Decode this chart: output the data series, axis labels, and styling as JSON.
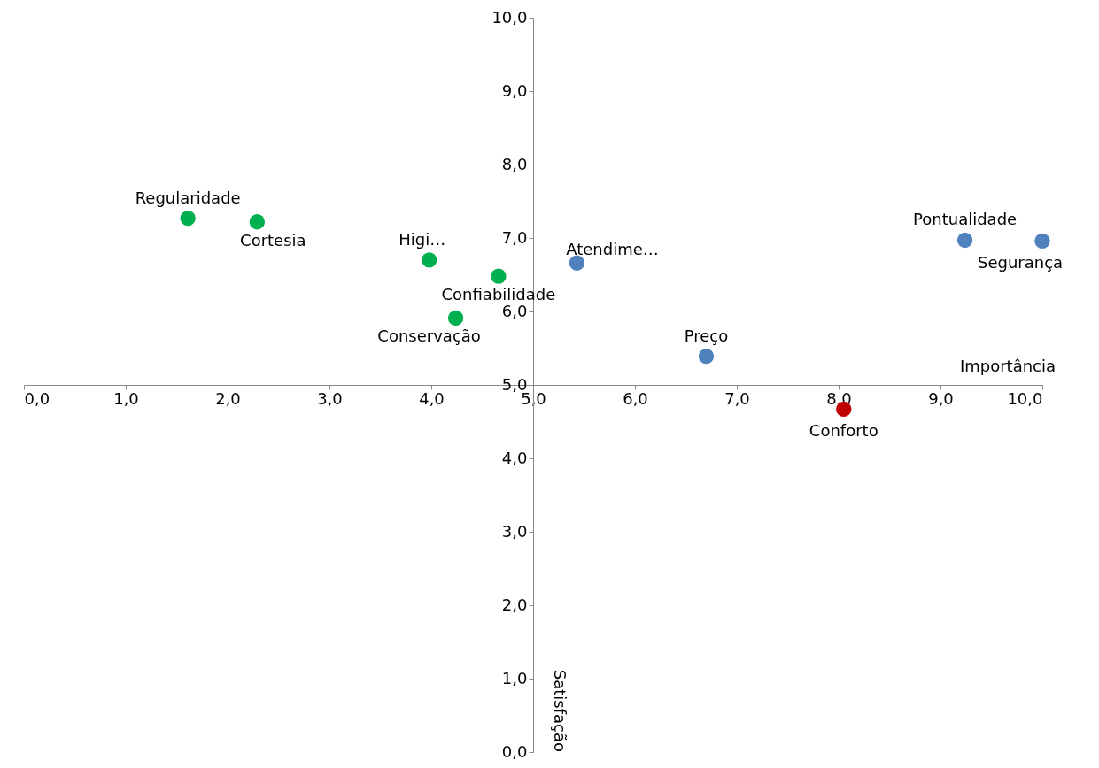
{
  "chart_data": {
    "type": "scatter",
    "xlabel": "Importância",
    "ylabel": "Satisfação",
    "series": [
      {
        "color": "#00b050",
        "x": [
          1.61,
          2.29,
          3.98,
          4.66,
          4.24
        ],
        "values": [
          7.27,
          7.22,
          6.7,
          6.48,
          5.91
        ]
      },
      {
        "color": "#4f81bd",
        "x": [
          5.43,
          6.7,
          9.24,
          10.0
        ],
        "values": [
          6.66,
          5.39,
          6.97,
          6.96
        ]
      },
      {
        "color": "#c00000",
        "x": [
          8.05
        ],
        "values": [
          4.67
        ]
      }
    ],
    "annotations": [
      {
        "text": "Regularidade",
        "x": 1.61,
        "y": 7.27
      },
      {
        "text": "Cortesia",
        "x": 2.29,
        "y": 7.22
      },
      {
        "text": "Higi…",
        "x": 3.98,
        "y": 6.7
      },
      {
        "text": "Confiabilidade",
        "x": 4.66,
        "y": 6.48
      },
      {
        "text": "Conservação",
        "x": 4.24,
        "y": 5.91
      },
      {
        "text": "Atendime…",
        "x": 5.43,
        "y": 6.66
      },
      {
        "text": "Preço",
        "x": 6.7,
        "y": 5.39
      },
      {
        "text": "Pontualidade",
        "x": 9.24,
        "y": 6.97
      },
      {
        "text": "Segurança",
        "x": 10.0,
        "y": 6.96
      },
      {
        "text": "Conforto",
        "x": 8.05,
        "y": 4.67
      }
    ],
    "xlim": [
      0,
      10
    ],
    "ylim": [
      0,
      10
    ],
    "xticks": [
      {
        "value": 0,
        "label": "0,0"
      },
      {
        "value": 1,
        "label": "1,0"
      },
      {
        "value": 2,
        "label": "2,0"
      },
      {
        "value": 3,
        "label": "3,0"
      },
      {
        "value": 4,
        "label": "4,0"
      },
      {
        "value": 5,
        "label": "5,0"
      },
      {
        "value": 6,
        "label": "6,0"
      },
      {
        "value": 7,
        "label": "7,0"
      },
      {
        "value": 8,
        "label": "8,0"
      },
      {
        "value": 9,
        "label": "9,0"
      },
      {
        "value": 10,
        "label": "10,0"
      }
    ],
    "yticks": [
      {
        "value": 0,
        "label": "0,0"
      },
      {
        "value": 1,
        "label": "1,0"
      },
      {
        "value": 2,
        "label": "2,0"
      },
      {
        "value": 3,
        "label": "3,0"
      },
      {
        "value": 4,
        "label": "4,0"
      },
      {
        "value": 5,
        "label": "5,0"
      },
      {
        "value": 6,
        "label": "6,0"
      },
      {
        "value": 7,
        "label": "7,0"
      },
      {
        "value": 8,
        "label": "8,0"
      },
      {
        "value": 9,
        "label": "9,0"
      },
      {
        "value": 10,
        "label": "10,0"
      }
    ],
    "grid": false,
    "legend": false,
    "marker": "circle"
  }
}
